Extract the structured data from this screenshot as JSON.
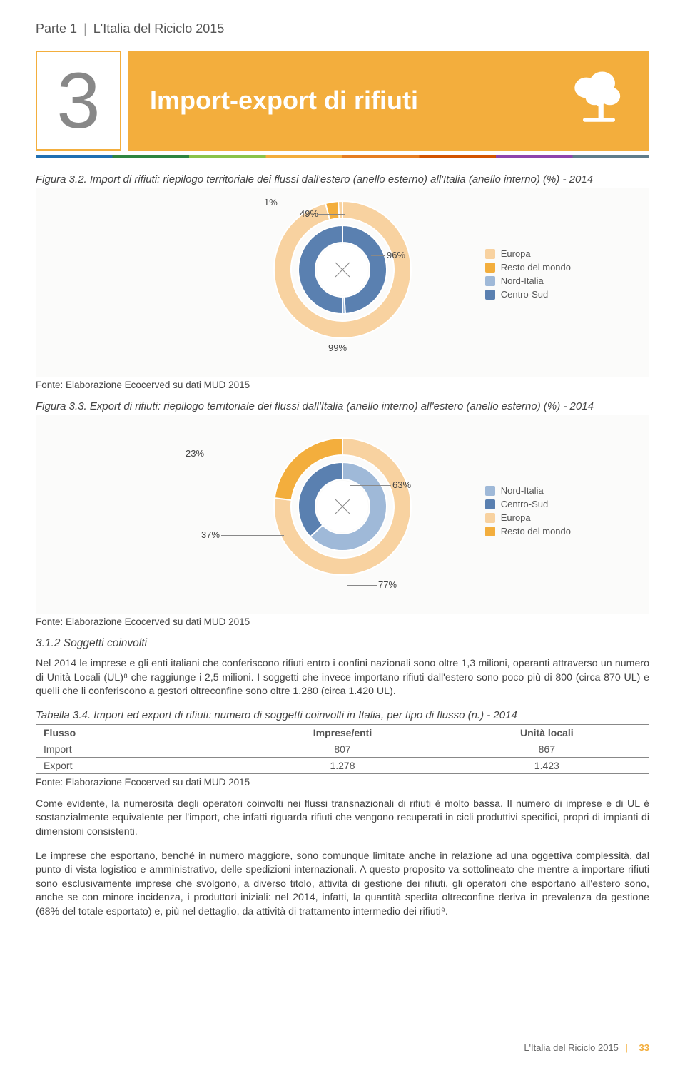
{
  "breadcrumb": {
    "part": "Parte 1",
    "title": "L'Italia del Riciclo 2015"
  },
  "chapter": {
    "number": "3",
    "title": "Import-export di rifiuti"
  },
  "colors": {
    "accent": "#f3ae3d",
    "europa": "#f8d2a0",
    "resto": "#f3ae3d",
    "nord": "#9fb9d8",
    "centro": "#5a80b0",
    "bg_panel": "#fbfbfa"
  },
  "fig32": {
    "caption": "Figura 3.2. Import di rifiuti: riepilogo territoriale dei flussi dall'estero (anello esterno) all'Italia (anello interno) (%) - 2014",
    "inner": {
      "labels": {
        "a": "1%",
        "b": "49%"
      },
      "slices": [
        {
          "value": 49,
          "color": "#5a80b0"
        },
        {
          "value": 1,
          "color": "#9fb9d8"
        },
        {
          "value": 50,
          "color": "#5a80b0"
        }
      ]
    },
    "outer": {
      "labels": {
        "a": "96%",
        "b": "99%"
      },
      "slices": [
        {
          "value": 96,
          "color": "#f8d2a0"
        },
        {
          "value": 3,
          "color": "#f3ae3d"
        },
        {
          "value": 1,
          "color": "#f8d2a0"
        }
      ]
    },
    "legend": [
      {
        "label": "Europa",
        "color": "#f8d2a0"
      },
      {
        "label": "Resto del mondo",
        "color": "#f3ae3d"
      },
      {
        "label": "Nord-Italia",
        "color": "#9fb9d8"
      },
      {
        "label": "Centro-Sud",
        "color": "#5a80b0"
      }
    ],
    "source": "Fonte: Elaborazione Ecocerved su dati MUD 2015"
  },
  "fig33": {
    "caption": "Figura 3.3. Export di rifiuti: riepilogo territoriale dei flussi dall'Italia (anello interno) all'estero (anello esterno) (%) - 2014",
    "inner": {
      "labels": {
        "a": "63%",
        "b": "37%"
      },
      "slices": [
        {
          "value": 63,
          "color": "#9fb9d8"
        },
        {
          "value": 37,
          "color": "#5a80b0"
        }
      ]
    },
    "outer": {
      "labels": {
        "a": "23%",
        "b": "77%"
      },
      "slices": [
        {
          "value": 77,
          "color": "#f8d2a0"
        },
        {
          "value": 23,
          "color": "#f3ae3d"
        }
      ]
    },
    "legend": [
      {
        "label": "Nord-Italia",
        "color": "#9fb9d8"
      },
      {
        "label": "Centro-Sud",
        "color": "#5a80b0"
      },
      {
        "label": "Europa",
        "color": "#f8d2a0"
      },
      {
        "label": "Resto del mondo",
        "color": "#f3ae3d"
      }
    ],
    "source": "Fonte: Elaborazione Ecocerved su dati MUD 2015"
  },
  "section312": {
    "heading": "3.1.2 Soggetti coinvolti",
    "p1": "Nel 2014 le imprese e gli enti italiani che conferiscono rifiuti entro i confini nazionali sono oltre 1,3 milioni, operanti attraverso un numero di Unità Locali (UL)⁸ che raggiunge i 2,5 milioni. I soggetti che invece importano rifiuti dall'estero sono poco più di 800 (circa 870 UL) e quelli che li conferiscono a gestori oltreconfine sono oltre 1.280 (circa 1.420 UL)."
  },
  "table34": {
    "caption": "Tabella 3.4. Import ed export di rifiuti: numero di soggetti coinvolti in Italia, per tipo di flusso (n.) - 2014",
    "columns": [
      "Flusso",
      "Imprese/enti",
      "Unità locali"
    ],
    "rows": [
      [
        "Import",
        "807",
        "867"
      ],
      [
        "Export",
        "1.278",
        "1.423"
      ]
    ],
    "source": "Fonte: Elaborazione Ecocerved su dati MUD 2015"
  },
  "paragraphs": {
    "p2": "Come evidente, la numerosità degli operatori coinvolti nei flussi transnazionali di rifiuti è molto bassa. Il numero di imprese e di UL è sostanzialmente equivalente per l'import, che infatti riguarda rifiuti che vengono recuperati in cicli produttivi specifici, propri di impianti di dimensioni consistenti.",
    "p3": "Le imprese che esportano, benché in numero maggiore, sono comunque limitate anche in relazione ad una oggettiva complessità, dal punto di vista logistico e amministrativo, delle spedizioni internazionali. A questo proposito va sottolineato che mentre a importare rifiuti sono esclusivamente imprese che svolgono, a diverso titolo, attività di gestione dei rifiuti, gli operatori che esportano all'estero sono, anche se con minore incidenza, i produttori iniziali: nel 2014, infatti, la quantità spedita oltreconfine deriva in prevalenza da gestione (68% del totale esportato) e, più nel dettaglio, da attività di trattamento intermedio dei rifiuti⁹."
  },
  "footer": {
    "doc": "L'Italia del Riciclo 2015",
    "page": "33"
  }
}
